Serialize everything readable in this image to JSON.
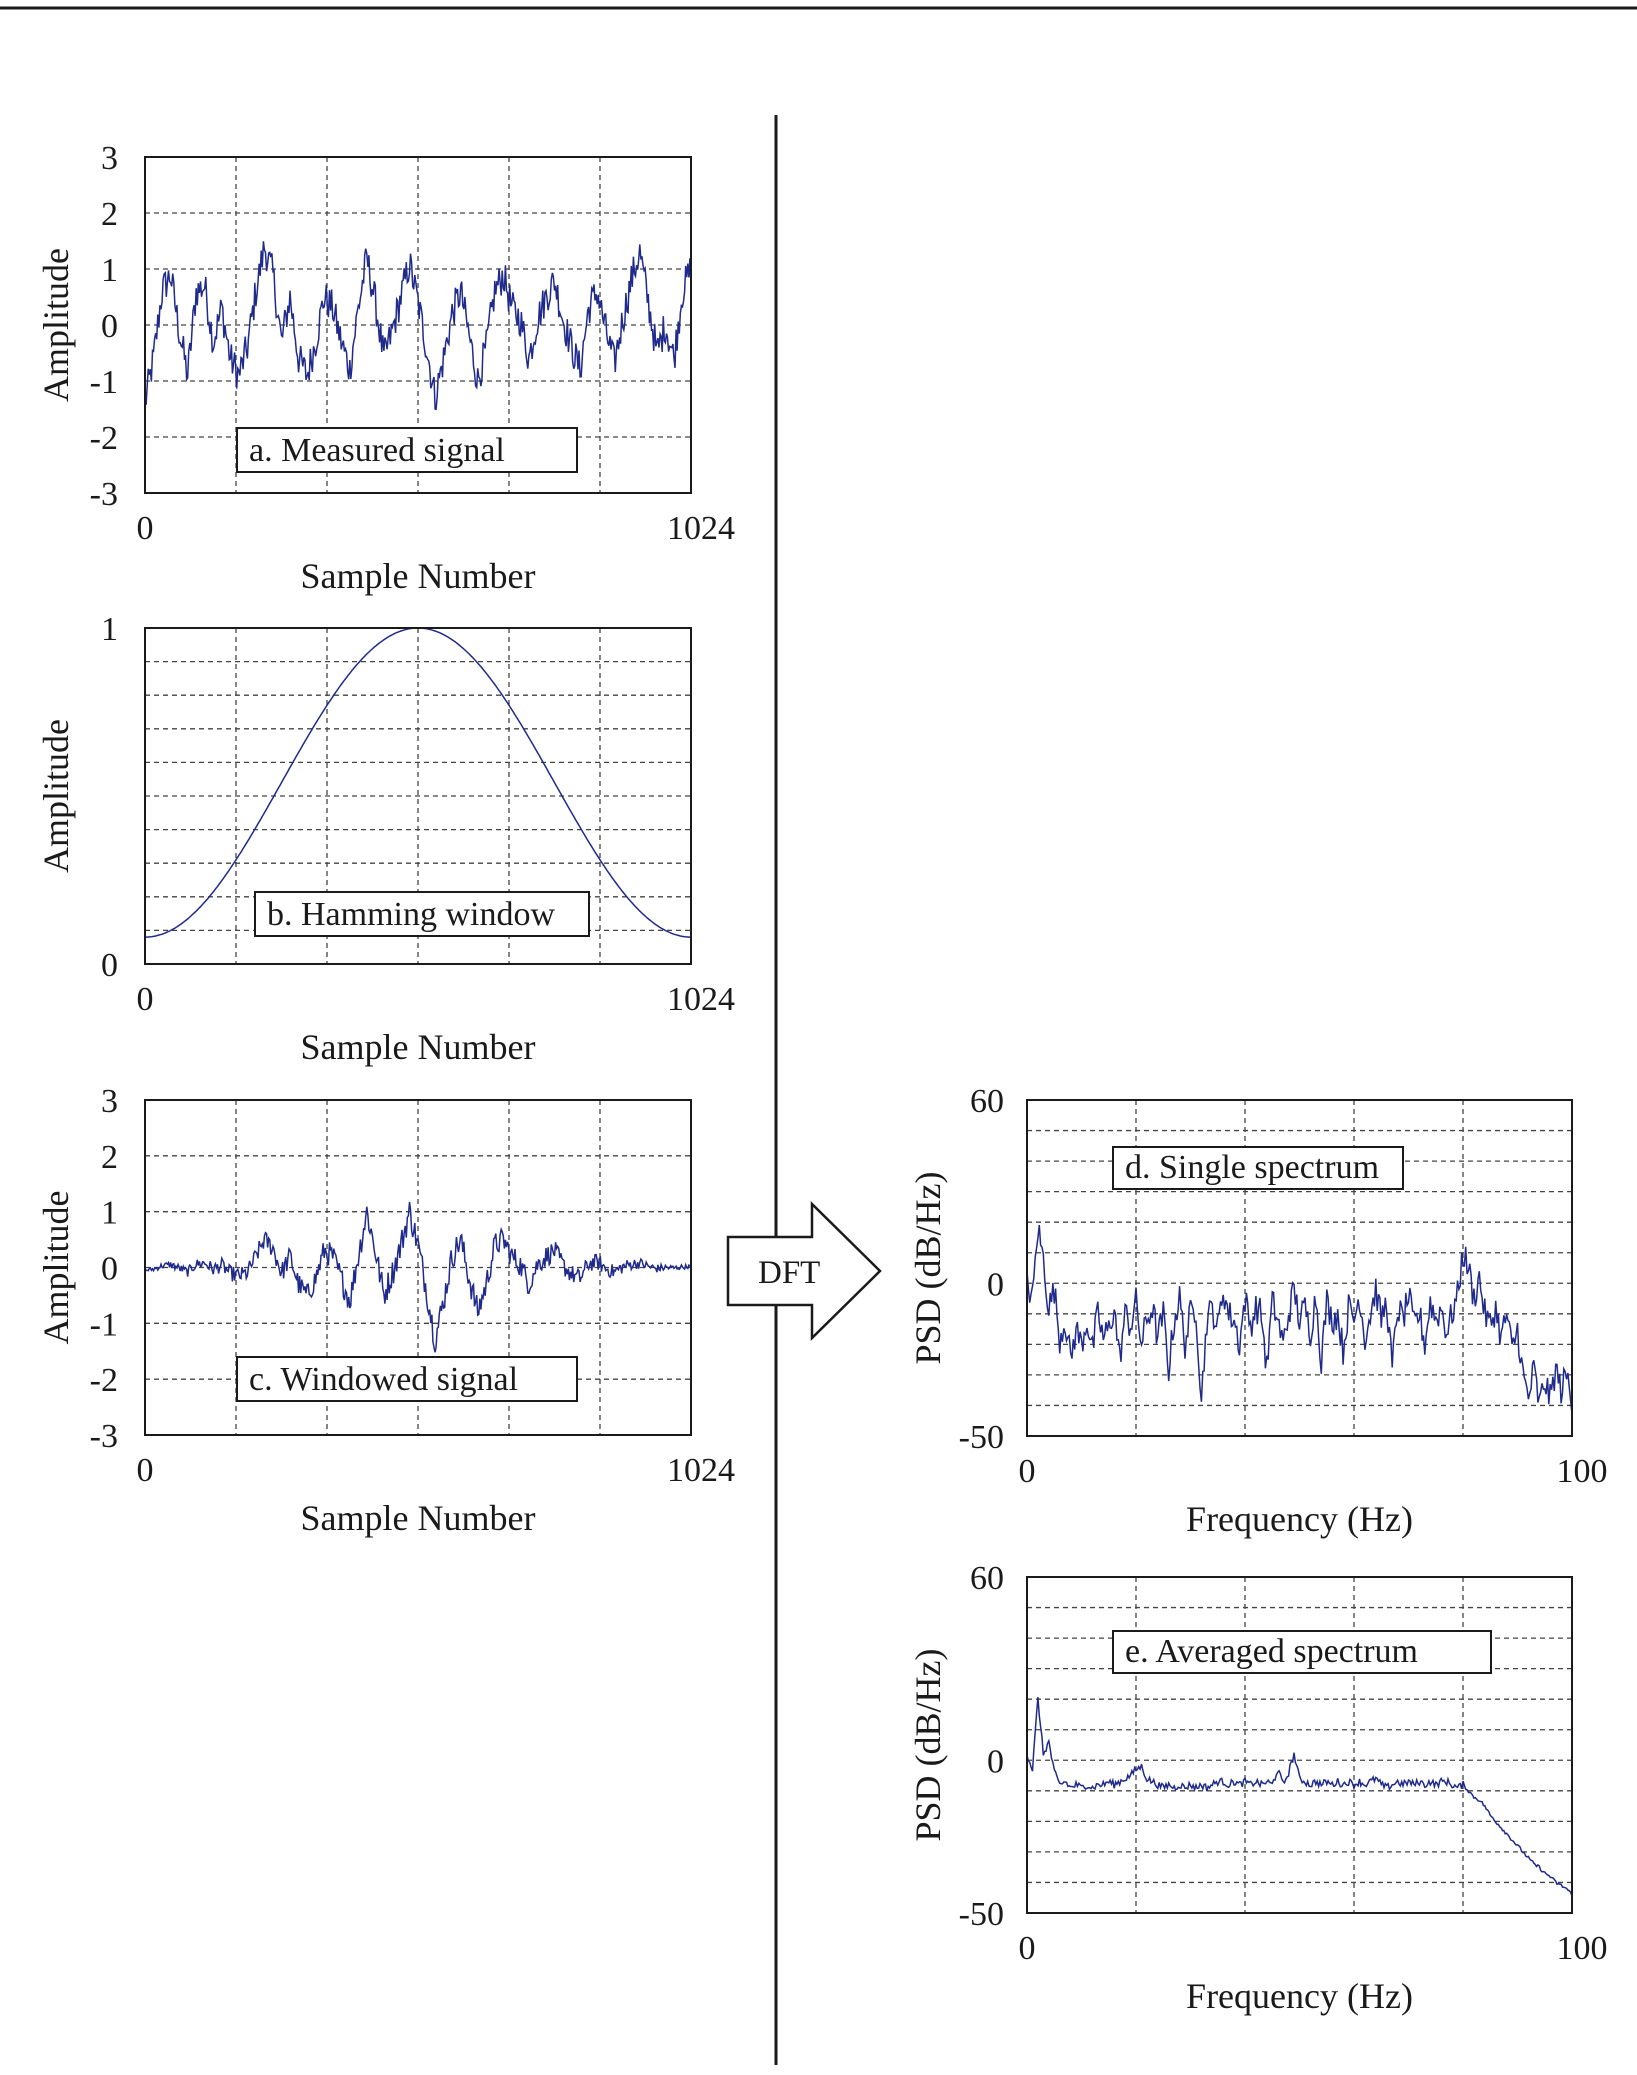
{
  "arrow": {
    "label": "DFT"
  },
  "chart_data": [
    {
      "id": "a",
      "type": "line",
      "label": "a. Measured signal",
      "xlabel": "Sample Number",
      "ylabel": "Amplitude",
      "xlim": [
        0,
        1024
      ],
      "ylim": [
        -3,
        3
      ],
      "xticks": [
        "0",
        "1024"
      ],
      "yticks": [
        "3",
        "2",
        "1",
        "0",
        "-1",
        "-2",
        "-3"
      ],
      "grid": true,
      "color": "#1f2a8c",
      "points": [
        [
          0,
          -1.4
        ],
        [
          16,
          -0.6
        ],
        [
          32,
          0.6
        ],
        [
          48,
          0.9
        ],
        [
          64,
          -0.1
        ],
        [
          80,
          -0.9
        ],
        [
          96,
          0.6
        ],
        [
          112,
          0.7
        ],
        [
          128,
          -0.3
        ],
        [
          144,
          0.3
        ],
        [
          160,
          -0.6
        ],
        [
          176,
          -0.9
        ],
        [
          192,
          -0.4
        ],
        [
          208,
          0.6
        ],
        [
          224,
          1.4
        ],
        [
          240,
          0.9
        ],
        [
          256,
          -0.3
        ],
        [
          272,
          0.5
        ],
        [
          288,
          -0.6
        ],
        [
          304,
          -0.9
        ],
        [
          320,
          -0.3
        ],
        [
          336,
          0.5
        ],
        [
          352,
          0.3
        ],
        [
          368,
          -0.3
        ],
        [
          384,
          -0.8
        ],
        [
          400,
          0.3
        ],
        [
          416,
          1.2
        ],
        [
          432,
          0.4
        ],
        [
          448,
          -0.6
        ],
        [
          464,
          -0.1
        ],
        [
          480,
          0.5
        ],
        [
          496,
          1.1
        ],
        [
          512,
          0.4
        ],
        [
          528,
          -0.4
        ],
        [
          544,
          -1.3
        ],
        [
          560,
          -0.6
        ],
        [
          576,
          0.2
        ],
        [
          592,
          0.6
        ],
        [
          608,
          -0.2
        ],
        [
          624,
          -1.0
        ],
        [
          640,
          -0.4
        ],
        [
          656,
          0.6
        ],
        [
          672,
          0.9
        ],
        [
          688,
          0.3
        ],
        [
          704,
          0.1
        ],
        [
          720,
          -0.6
        ],
        [
          736,
          0.1
        ],
        [
          752,
          0.5
        ],
        [
          768,
          0.8
        ],
        [
          784,
          0.1
        ],
        [
          800,
          -0.4
        ],
        [
          816,
          -0.8
        ],
        [
          832,
          0.3
        ],
        [
          848,
          0.6
        ],
        [
          864,
          -0.1
        ],
        [
          880,
          -0.7
        ],
        [
          896,
          0.1
        ],
        [
          912,
          0.8
        ],
        [
          928,
          1.3
        ],
        [
          944,
          0.4
        ],
        [
          960,
          -0.5
        ],
        [
          976,
          0.0
        ],
        [
          992,
          -0.6
        ],
        [
          1008,
          0.6
        ],
        [
          1024,
          1.0
        ]
      ]
    },
    {
      "id": "b",
      "type": "line",
      "label": "b. Hamming window",
      "xlabel": "Sample Number",
      "ylabel": "Amplitude",
      "xlim": [
        0,
        1024
      ],
      "ylim": [
        0,
        1
      ],
      "xticks": [
        "0",
        "1024"
      ],
      "yticks": [
        "1",
        "0"
      ],
      "grid": true,
      "color": "#1f2a8c",
      "function": "hamming"
    },
    {
      "id": "c",
      "type": "line",
      "label": "c. Windowed signal",
      "xlabel": "Sample Number",
      "ylabel": "Amplitude",
      "xlim": [
        0,
        1024
      ],
      "ylim": [
        -3,
        3
      ],
      "xticks": [
        "0",
        "1024"
      ],
      "yticks": [
        "3",
        "2",
        "1",
        "0",
        "-1",
        "-2",
        "-3"
      ],
      "grid": true,
      "color": "#1f2a8c",
      "points": [
        [
          0,
          -0.05
        ],
        [
          16,
          -0.03
        ],
        [
          32,
          0.03
        ],
        [
          48,
          0.05
        ],
        [
          64,
          -0.01
        ],
        [
          80,
          -0.08
        ],
        [
          96,
          0.06
        ],
        [
          112,
          0.08
        ],
        [
          128,
          -0.03
        ],
        [
          144,
          0.04
        ],
        [
          160,
          -0.1
        ],
        [
          176,
          -0.15
        ],
        [
          192,
          -0.1
        ],
        [
          208,
          0.2
        ],
        [
          224,
          0.5
        ],
        [
          240,
          0.35
        ],
        [
          256,
          -0.1
        ],
        [
          272,
          0.2
        ],
        [
          288,
          -0.3
        ],
        [
          304,
          -0.5
        ],
        [
          320,
          -0.2
        ],
        [
          336,
          0.3
        ],
        [
          352,
          0.2
        ],
        [
          368,
          -0.2
        ],
        [
          384,
          -0.6
        ],
        [
          400,
          0.2
        ],
        [
          416,
          1.0
        ],
        [
          432,
          0.3
        ],
        [
          448,
          -0.5
        ],
        [
          464,
          -0.1
        ],
        [
          480,
          0.4
        ],
        [
          496,
          1.0
        ],
        [
          512,
          0.4
        ],
        [
          528,
          -0.4
        ],
        [
          544,
          -1.3
        ],
        [
          560,
          -0.6
        ],
        [
          576,
          0.2
        ],
        [
          592,
          0.5
        ],
        [
          608,
          -0.2
        ],
        [
          624,
          -0.8
        ],
        [
          640,
          -0.3
        ],
        [
          656,
          0.4
        ],
        [
          672,
          0.5
        ],
        [
          688,
          0.2
        ],
        [
          704,
          0.05
        ],
        [
          720,
          -0.3
        ],
        [
          736,
          0.05
        ],
        [
          752,
          0.2
        ],
        [
          768,
          0.3
        ],
        [
          784,
          0.04
        ],
        [
          800,
          -0.12
        ],
        [
          816,
          -0.2
        ],
        [
          832,
          0.07
        ],
        [
          848,
          0.1
        ],
        [
          864,
          -0.02
        ],
        [
          880,
          -0.08
        ],
        [
          896,
          0.01
        ],
        [
          912,
          0.06
        ],
        [
          928,
          0.08
        ],
        [
          944,
          0.02
        ],
        [
          960,
          -0.02
        ],
        [
          976,
          0.0
        ],
        [
          992,
          -0.01
        ],
        [
          1008,
          0.01
        ],
        [
          1024,
          0.02
        ]
      ]
    },
    {
      "id": "d",
      "type": "line",
      "label": "d. Single spectrum",
      "xlabel": "Frequency (Hz)",
      "ylabel": "PSD (dB/Hz)",
      "xlim": [
        0,
        100
      ],
      "ylim": [
        -50,
        60
      ],
      "xticks": [
        "0",
        "100"
      ],
      "yticks": [
        "60",
        "0",
        "-50"
      ],
      "grid": true,
      "color": "#1f2a8c",
      "points": [
        [
          0,
          0
        ],
        [
          1,
          -5
        ],
        [
          2,
          18
        ],
        [
          3,
          8
        ],
        [
          4,
          -8
        ],
        [
          5,
          -2
        ],
        [
          6,
          -18
        ],
        [
          7,
          -12
        ],
        [
          8,
          -25
        ],
        [
          9,
          -15
        ],
        [
          10,
          -20
        ],
        [
          11,
          -12
        ],
        [
          12,
          -22
        ],
        [
          13,
          -10
        ],
        [
          14,
          -18
        ],
        [
          15,
          -15
        ],
        [
          16,
          -8
        ],
        [
          17,
          -25
        ],
        [
          18,
          -10
        ],
        [
          19,
          -14
        ],
        [
          20,
          -6
        ],
        [
          21,
          -20
        ],
        [
          22,
          -12
        ],
        [
          23,
          -8
        ],
        [
          24,
          -18
        ],
        [
          25,
          -10
        ],
        [
          26,
          -28
        ],
        [
          27,
          -12
        ],
        [
          28,
          -5
        ],
        [
          29,
          -20
        ],
        [
          30,
          -10
        ],
        [
          31,
          -8
        ],
        [
          32,
          -38
        ],
        [
          33,
          -12
        ],
        [
          34,
          -8
        ],
        [
          35,
          -15
        ],
        [
          36,
          -2
        ],
        [
          37,
          -10
        ],
        [
          38,
          -12
        ],
        [
          39,
          -20
        ],
        [
          40,
          -5
        ],
        [
          41,
          -14
        ],
        [
          42,
          -8
        ],
        [
          43,
          -10
        ],
        [
          44,
          -28
        ],
        [
          45,
          -6
        ],
        [
          46,
          -12
        ],
        [
          47,
          -20
        ],
        [
          48,
          -10
        ],
        [
          49,
          -2
        ],
        [
          50,
          -12
        ],
        [
          51,
          -8
        ],
        [
          52,
          -16
        ],
        [
          53,
          -4
        ],
        [
          54,
          -25
        ],
        [
          55,
          -6
        ],
        [
          56,
          -12
        ],
        [
          57,
          -10
        ],
        [
          58,
          -22
        ],
        [
          59,
          -8
        ],
        [
          60,
          -12
        ],
        [
          61,
          -4
        ],
        [
          62,
          -18
        ],
        [
          63,
          -10
        ],
        [
          64,
          -2
        ],
        [
          65,
          -12
        ],
        [
          66,
          -6
        ],
        [
          67,
          -28
        ],
        [
          68,
          -8
        ],
        [
          69,
          -12
        ],
        [
          70,
          -4
        ],
        [
          71,
          -14
        ],
        [
          72,
          -10
        ],
        [
          73,
          -20
        ],
        [
          74,
          -6
        ],
        [
          75,
          -12
        ],
        [
          76,
          -8
        ],
        [
          77,
          -16
        ],
        [
          78,
          -10
        ],
        [
          79,
          -4
        ],
        [
          80,
          10
        ],
        [
          81,
          5
        ],
        [
          82,
          -5
        ],
        [
          83,
          2
        ],
        [
          84,
          -10
        ],
        [
          85,
          -14
        ],
        [
          86,
          -8
        ],
        [
          87,
          -18
        ],
        [
          88,
          -10
        ],
        [
          89,
          -22
        ],
        [
          90,
          -15
        ],
        [
          91,
          -30
        ],
        [
          92,
          -38
        ],
        [
          93,
          -28
        ],
        [
          94,
          -40
        ],
        [
          95,
          -32
        ],
        [
          96,
          -38
        ],
        [
          97,
          -28
        ],
        [
          98,
          -35
        ],
        [
          99,
          -30
        ],
        [
          100,
          -38
        ]
      ]
    },
    {
      "id": "e",
      "type": "line",
      "label": "e. Averaged spectrum",
      "xlabel": "Frequency (Hz)",
      "ylabel": "PSD (dB/Hz)",
      "xlim": [
        0,
        100
      ],
      "ylim": [
        -50,
        60
      ],
      "xticks": [
        "0",
        "100"
      ],
      "yticks": [
        "60",
        "0",
        "-50"
      ],
      "grid": true,
      "color": "#1f2a8c",
      "points": [
        [
          0,
          2
        ],
        [
          1,
          -3
        ],
        [
          2,
          20
        ],
        [
          3,
          2
        ],
        [
          4,
          6
        ],
        [
          5,
          -4
        ],
        [
          6,
          -8
        ],
        [
          7,
          -7
        ],
        [
          8,
          -9
        ],
        [
          9,
          -8
        ],
        [
          10,
          -9
        ],
        [
          11,
          -8
        ],
        [
          12,
          -9
        ],
        [
          13,
          -8
        ],
        [
          14,
          -8
        ],
        [
          15,
          -7
        ],
        [
          16,
          -8
        ],
        [
          17,
          -7
        ],
        [
          18,
          -6
        ],
        [
          19,
          -5
        ],
        [
          20,
          -3
        ],
        [
          21,
          -2
        ],
        [
          22,
          -6
        ],
        [
          23,
          -7
        ],
        [
          24,
          -8
        ],
        [
          25,
          -9
        ],
        [
          26,
          -8
        ],
        [
          27,
          -9
        ],
        [
          28,
          -8
        ],
        [
          29,
          -9
        ],
        [
          30,
          -8
        ],
        [
          31,
          -9
        ],
        [
          32,
          -8
        ],
        [
          33,
          -9
        ],
        [
          34,
          -8
        ],
        [
          35,
          -7
        ],
        [
          36,
          -7
        ],
        [
          37,
          -8
        ],
        [
          38,
          -7
        ],
        [
          39,
          -8
        ],
        [
          40,
          -7
        ],
        [
          41,
          -8
        ],
        [
          42,
          -7
        ],
        [
          43,
          -8
        ],
        [
          44,
          -7
        ],
        [
          45,
          -8
        ],
        [
          46,
          -3
        ],
        [
          47,
          -8
        ],
        [
          48,
          -4
        ],
        [
          49,
          2
        ],
        [
          50,
          -6
        ],
        [
          51,
          -7
        ],
        [
          52,
          -8
        ],
        [
          53,
          -7
        ],
        [
          54,
          -8
        ],
        [
          55,
          -7
        ],
        [
          56,
          -8
        ],
        [
          57,
          -7
        ],
        [
          58,
          -8
        ],
        [
          59,
          -7
        ],
        [
          60,
          -8
        ],
        [
          61,
          -7
        ],
        [
          62,
          -8
        ],
        [
          63,
          -7
        ],
        [
          64,
          -6
        ],
        [
          65,
          -8
        ],
        [
          66,
          -9
        ],
        [
          67,
          -8
        ],
        [
          68,
          -7
        ],
        [
          69,
          -8
        ],
        [
          70,
          -7
        ],
        [
          71,
          -8
        ],
        [
          72,
          -7
        ],
        [
          73,
          -8
        ],
        [
          74,
          -7
        ],
        [
          75,
          -8
        ],
        [
          76,
          -7
        ],
        [
          77,
          -7
        ],
        [
          78,
          -8
        ],
        [
          79,
          -9
        ],
        [
          80,
          -8
        ],
        [
          81,
          -10
        ],
        [
          82,
          -12
        ],
        [
          83,
          -13
        ],
        [
          84,
          -15
        ],
        [
          85,
          -18
        ],
        [
          86,
          -20
        ],
        [
          87,
          -22
        ],
        [
          88,
          -24
        ],
        [
          89,
          -26
        ],
        [
          90,
          -28
        ],
        [
          91,
          -30
        ],
        [
          92,
          -32
        ],
        [
          93,
          -34
        ],
        [
          94,
          -35
        ],
        [
          95,
          -37
        ],
        [
          96,
          -38
        ],
        [
          97,
          -40
        ],
        [
          98,
          -41
        ],
        [
          99,
          -42
        ],
        [
          100,
          -44
        ]
      ]
    }
  ]
}
